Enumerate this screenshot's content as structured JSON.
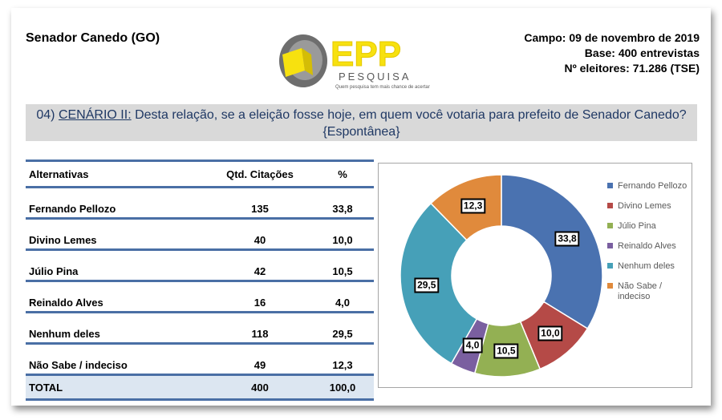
{
  "header": {
    "location": "Senador Canedo (GO)",
    "campo": "Campo: 09 de novembro de 2019",
    "base": "Base: 400 entrevistas",
    "eleitores": "Nº eleitores: 71.286  (TSE)"
  },
  "logo": {
    "name": "EPP",
    "sub": "PESQUISA",
    "tagline": "Quem pesquisa tem mais chance de acertar",
    "colors": {
      "yellow": "#f7e10f",
      "gray": "#7f7f7f"
    }
  },
  "question": {
    "number": "04) ",
    "label": "CENÁRIO II:",
    "text": " Desta relação, se a eleição fosse hoje, em quem você votaria para prefeito de Senador Canedo? {Espontânea}"
  },
  "table": {
    "headers": {
      "alt": "Alternativas",
      "qtd": "Qtd. Citações",
      "pct": "%"
    },
    "rows": [
      {
        "name": "Fernando Pellozo",
        "qtd": "135",
        "pct": "33,8"
      },
      {
        "name": "Divino Lemes",
        "qtd": "40",
        "pct": "10,0"
      },
      {
        "name": "Júlio Pina",
        "qtd": "42",
        "pct": "10,5"
      },
      {
        "name": "Reinaldo Alves",
        "qtd": "16",
        "pct": "4,0"
      },
      {
        "name": "Nenhum deles",
        "qtd": "118",
        "pct": "29,5"
      },
      {
        "name": "Não Sabe / indeciso",
        "qtd": "49",
        "pct": "12,3"
      }
    ],
    "total": {
      "name": "TOTAL",
      "qtd": "400",
      "pct": "100,0"
    }
  },
  "chart_data": {
    "type": "pie",
    "subtype": "doughnut",
    "title": "",
    "categories": [
      "Fernando Pellozo",
      "Divino Lemes",
      "Júlio Pina",
      "Reinaldo Alves",
      "Nenhum deles",
      "Não Sabe / indeciso"
    ],
    "values": [
      33.8,
      10.0,
      10.5,
      4.0,
      29.5,
      12.3
    ],
    "labels": [
      "33,8",
      "10,0",
      "10,5",
      "4,0",
      "29,5",
      "12,3"
    ],
    "colors": [
      "#4a72b0",
      "#b54a47",
      "#93b053",
      "#7a5fa0",
      "#46a0b8",
      "#e08a3c"
    ],
    "legend": "right"
  }
}
